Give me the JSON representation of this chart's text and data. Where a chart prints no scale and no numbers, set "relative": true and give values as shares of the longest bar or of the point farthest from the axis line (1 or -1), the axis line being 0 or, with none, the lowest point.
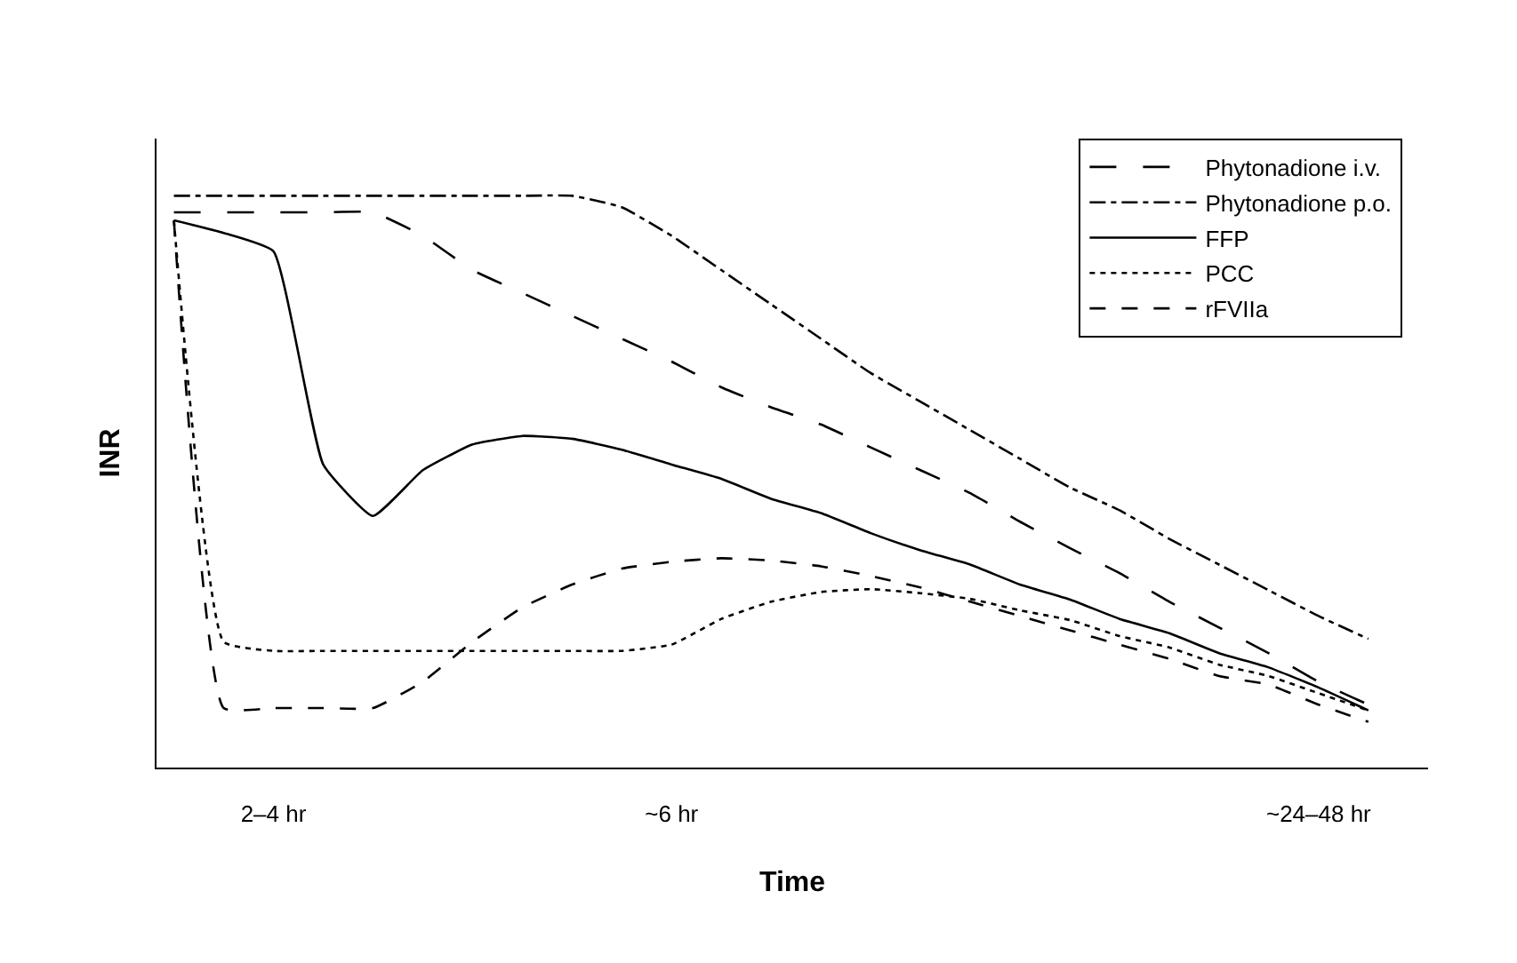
{
  "chart_data": {
    "type": "line",
    "relative": true,
    "xlabel": "Time",
    "ylabel": "INR",
    "categories": [
      null,
      null,
      "2–4 hr",
      null,
      null,
      null,
      null,
      null,
      null,
      null,
      "~6 hr",
      null,
      null,
      null,
      null,
      null,
      null,
      null,
      null,
      null,
      null,
      null,
      null,
      "~24–48 hr",
      null
    ],
    "legend": "top right",
    "marker": "none",
    "series": [
      {
        "name": "Phytonadione i.v.",
        "color": "#000000",
        "line_style": "longdash",
        "values": [
          0.971,
          0.971,
          0.971,
          0.971,
          0.971,
          0.93,
          0.87,
          0.83,
          0.79,
          0.75,
          0.71,
          0.665,
          0.63,
          0.6,
          0.56,
          0.52,
          0.48,
          0.43,
          0.384,
          0.34,
          0.29,
          0.245,
          0.2,
          0.15,
          0.11
        ]
      },
      {
        "name": "Phytonadione p.o.",
        "color": "#000000",
        "line_style": "dashdot",
        "values": [
          1.0,
          1.0,
          1.0,
          1.0,
          1.0,
          1.0,
          1.0,
          1.0,
          1.0,
          0.98,
          0.93,
          0.87,
          0.81,
          0.75,
          0.69,
          0.64,
          0.59,
          0.54,
          0.49,
          0.45,
          0.4,
          0.355,
          0.31,
          0.265,
          0.225
        ]
      },
      {
        "name": "FFP",
        "color": "#000000",
        "line_style": "solid",
        "values": [
          0.957,
          0.935,
          0.903,
          0.53,
          0.44,
          0.52,
          0.565,
          0.58,
          0.575,
          0.556,
          0.53,
          0.505,
          0.47,
          0.445,
          0.41,
          0.38,
          0.355,
          0.32,
          0.294,
          0.26,
          0.235,
          0.2,
          0.175,
          0.14,
          0.1
        ]
      },
      {
        "name": "PCC",
        "color": "#000000",
        "line_style": "dot",
        "values": [
          0.957,
          0.22,
          0.204,
          0.204,
          0.204,
          0.204,
          0.204,
          0.204,
          0.204,
          0.204,
          0.215,
          0.26,
          0.29,
          0.307,
          0.312,
          0.305,
          0.295,
          0.275,
          0.258,
          0.23,
          0.21,
          0.18,
          0.16,
          0.13,
          0.1
        ]
      },
      {
        "name": "rFVIIa",
        "color": "#000000",
        "line_style": "dash",
        "values": [
          0.957,
          0.104,
          0.104,
          0.104,
          0.104,
          0.15,
          0.22,
          0.28,
          0.32,
          0.348,
          0.36,
          0.366,
          0.362,
          0.352,
          0.335,
          0.315,
          0.29,
          0.265,
          0.24,
          0.215,
          0.19,
          0.16,
          0.145,
          0.11,
          0.08
        ]
      }
    ]
  }
}
